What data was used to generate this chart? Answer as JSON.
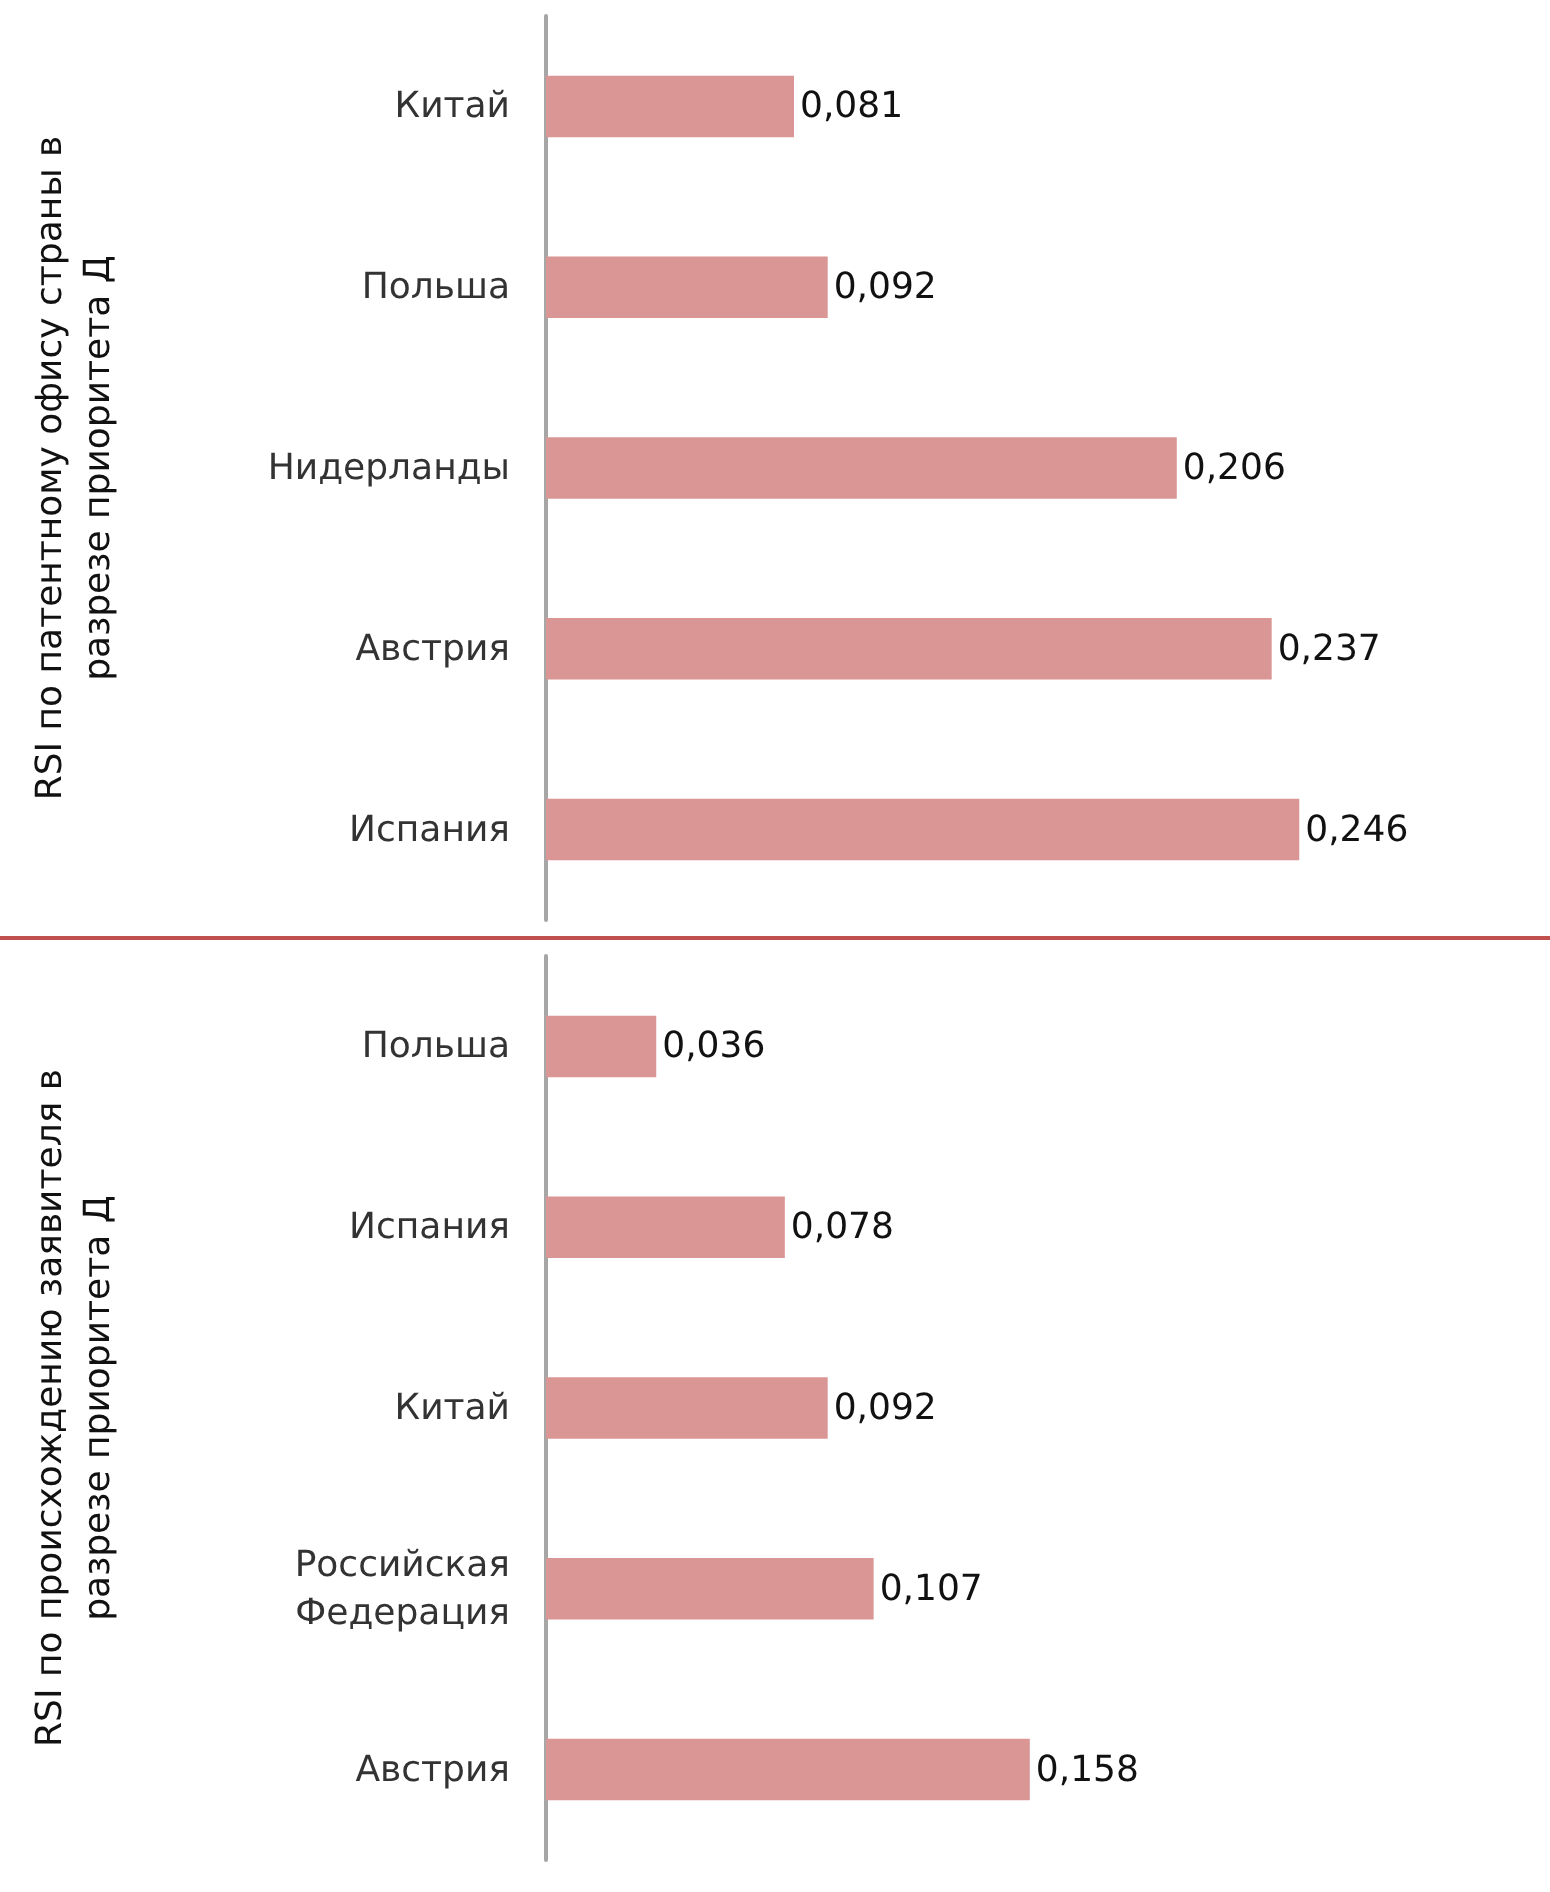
{
  "chart_data": [
    {
      "type": "bar",
      "orientation": "horizontal",
      "ylabel": "RSI по патентному офису страны в разрезе приоритета Д",
      "categories": [
        "Китай",
        "Польша",
        "Нидерланды",
        "Австрия",
        "Испания"
      ],
      "values": [
        0.081,
        0.092,
        0.206,
        0.237,
        0.246
      ],
      "value_labels": [
        "0,081",
        "0,092",
        "0,206",
        "0,237",
        "0,246"
      ],
      "color": "#d99694",
      "tick_labels": "y"
    },
    {
      "type": "bar",
      "orientation": "horizontal",
      "ylabel": "RSI по происхождению заявителя в разрезе приоритета Д",
      "categories": [
        "Польша",
        "Испания",
        "Китай",
        "Российская Федерация",
        "Австрия"
      ],
      "values": [
        0.036,
        0.078,
        0.092,
        0.107,
        0.158
      ],
      "value_labels": [
        "0,036",
        "0,078",
        "0,092",
        "0,107",
        "0,158"
      ],
      "color": "#d99694",
      "tick_labels": "y"
    }
  ]
}
